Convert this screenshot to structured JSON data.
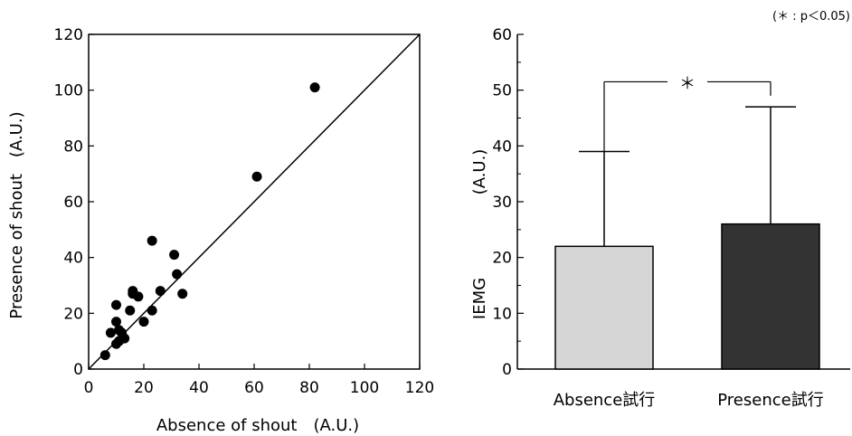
{
  "chart_data": [
    {
      "type": "scatter",
      "xlabel": "Absence of shout　(A.U.)",
      "ylabel": "Presence of shout　(A.U.)",
      "xlim": [
        0,
        120
      ],
      "ylim": [
        0,
        120
      ],
      "xticks": [
        "0",
        "20",
        "40",
        "60",
        "80",
        "100",
        "120"
      ],
      "yticks": [
        "0",
        "20",
        "40",
        "60",
        "80",
        "100",
        "120"
      ],
      "identity_line": true,
      "grid": false,
      "points": [
        {
          "x": 82,
          "y": 101
        },
        {
          "x": 61,
          "y": 69
        },
        {
          "x": 23,
          "y": 46
        },
        {
          "x": 31,
          "y": 41
        },
        {
          "x": 32,
          "y": 34
        },
        {
          "x": 16,
          "y": 28
        },
        {
          "x": 16,
          "y": 27
        },
        {
          "x": 18,
          "y": 26
        },
        {
          "x": 26,
          "y": 28
        },
        {
          "x": 34,
          "y": 27
        },
        {
          "x": 10,
          "y": 23
        },
        {
          "x": 15,
          "y": 21
        },
        {
          "x": 23,
          "y": 21
        },
        {
          "x": 20,
          "y": 17
        },
        {
          "x": 10,
          "y": 17
        },
        {
          "x": 11,
          "y": 14
        },
        {
          "x": 8,
          "y": 13
        },
        {
          "x": 12,
          "y": 13
        },
        {
          "x": 13,
          "y": 11
        },
        {
          "x": 11,
          "y": 10
        },
        {
          "x": 10,
          "y": 9
        },
        {
          "x": 6,
          "y": 5
        }
      ]
    },
    {
      "type": "bar",
      "ylabel_word": "IEMG",
      "ylabel_unit": "(A.U.)",
      "categories": [
        "Absence試行",
        "Presence試行"
      ],
      "values": [
        22,
        26
      ],
      "error_upper": [
        39,
        47
      ],
      "ylim": [
        0,
        60
      ],
      "yticks": [
        "0",
        "10",
        "20",
        "30",
        "40",
        "50",
        "60"
      ],
      "bar_colors": [
        "#d6d6d6",
        "#333333"
      ],
      "significance_marker": "＊",
      "note": "(＊ : p＜0.05)"
    }
  ]
}
